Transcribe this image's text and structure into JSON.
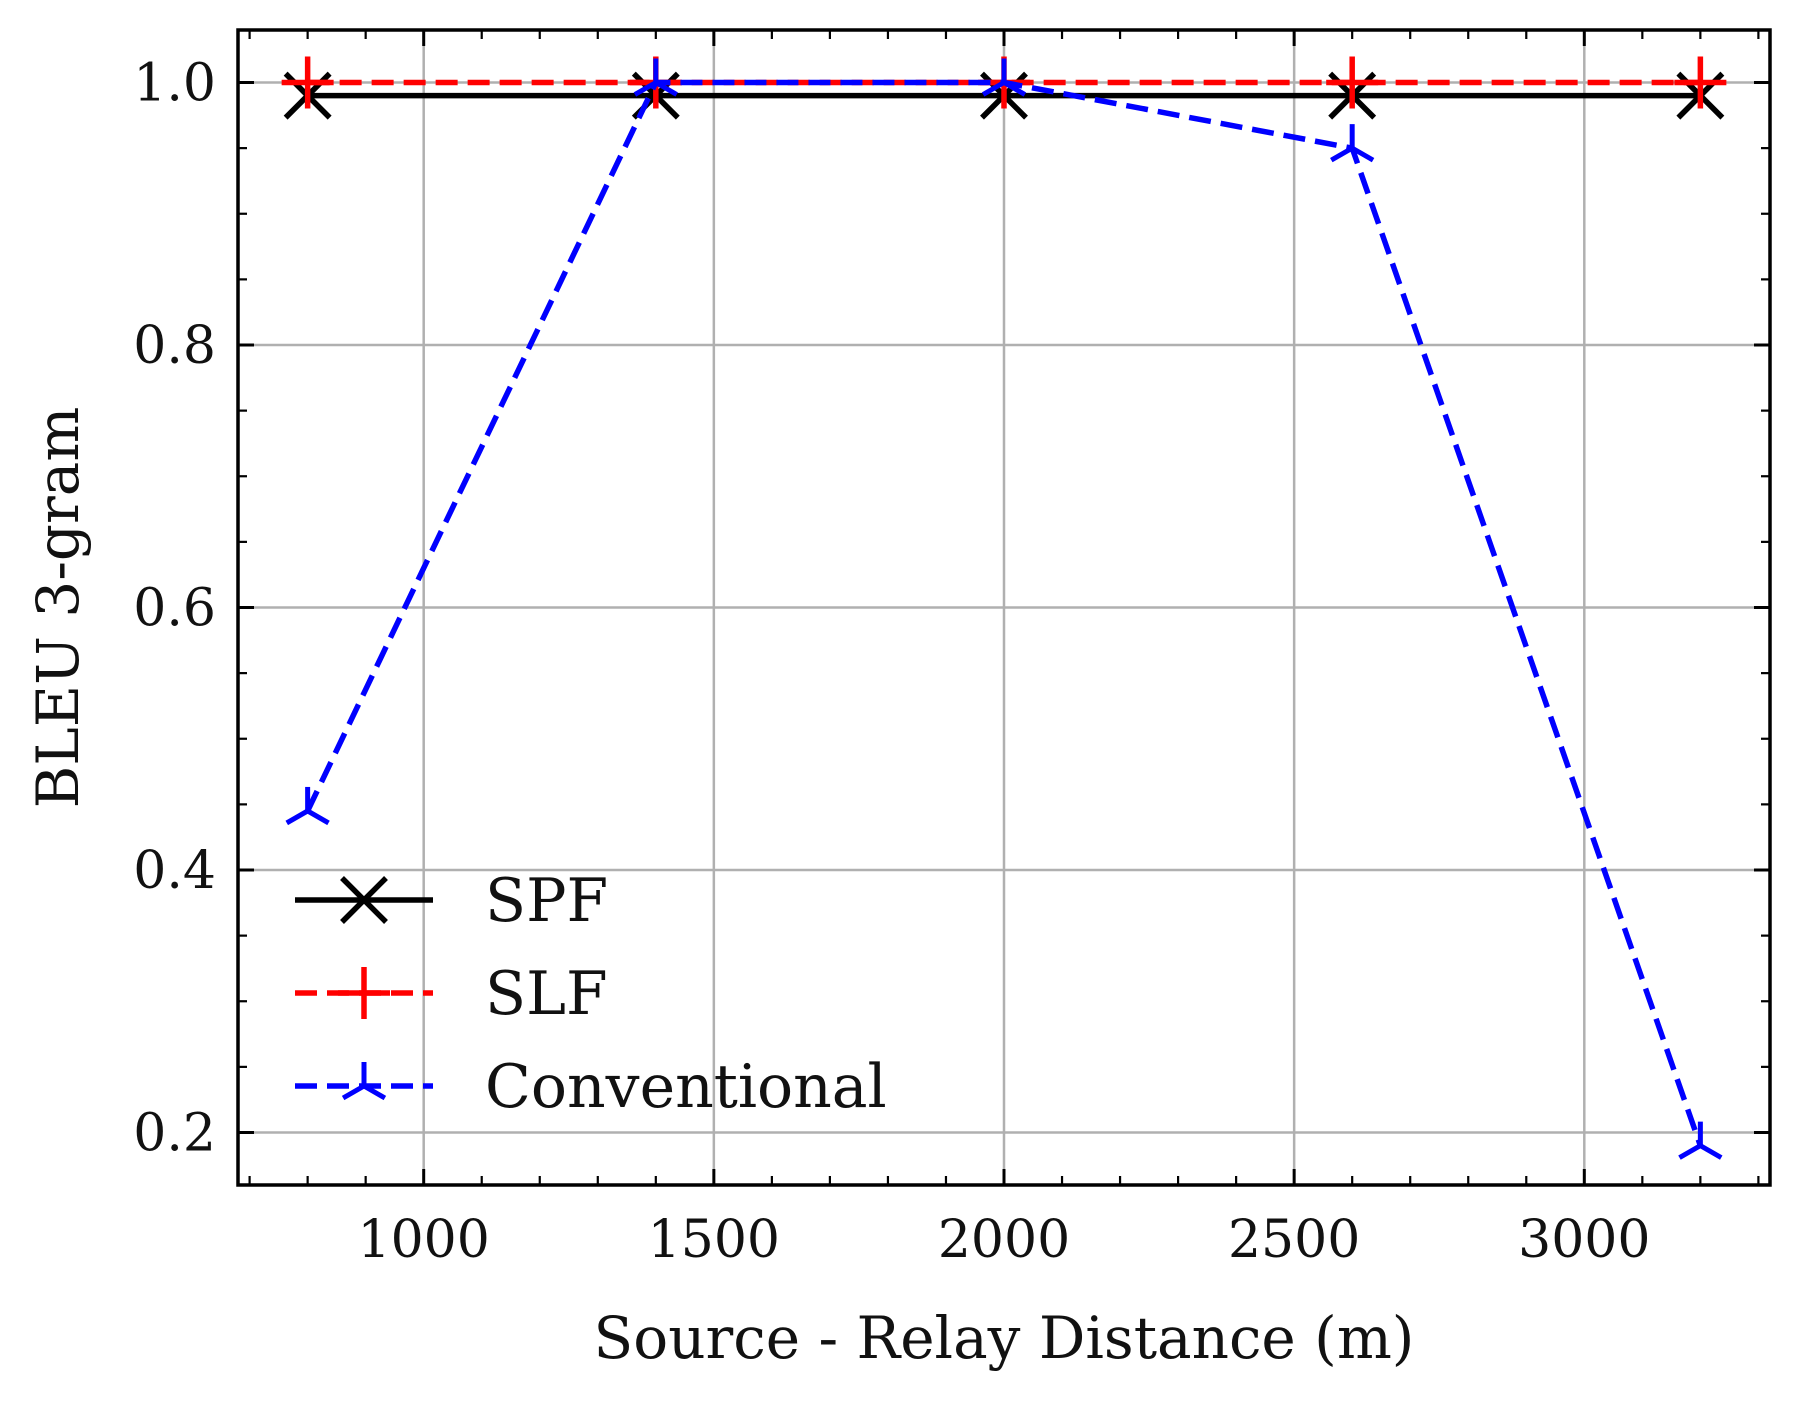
{
  "chart_data": {
    "type": "line",
    "title": "",
    "xlabel": "Source - Relay Distance (m)",
    "ylabel": "BLEU 3-gram",
    "x": [
      800,
      1400,
      2000,
      2600,
      3200
    ],
    "xlim": [
      680,
      3320
    ],
    "ylim": [
      0.16,
      1.04
    ],
    "xticks": [
      1000,
      1500,
      2000,
      2500,
      3000
    ],
    "xtick_labels": [
      "1000",
      "1500",
      "2000",
      "2500",
      "3000"
    ],
    "yticks": [
      0.2,
      0.4,
      0.6,
      0.8,
      1.0
    ],
    "ytick_labels": [
      "0.2",
      "0.4",
      "0.6",
      "0.8",
      "1.0"
    ],
    "grid": true,
    "legend_position": "lower-left",
    "series": [
      {
        "name": "SPF",
        "values": [
          0.99,
          0.99,
          0.99,
          0.99,
          0.99
        ],
        "color": "#000000",
        "linestyle": "solid",
        "marker": "x"
      },
      {
        "name": "SLF",
        "values": [
          1.0,
          1.0,
          1.0,
          1.0,
          1.0
        ],
        "color": "#ff0000",
        "linestyle": "dashed",
        "marker": "plus"
      },
      {
        "name": "Conventional",
        "values": [
          0.445,
          1.0,
          1.0,
          0.95,
          0.19
        ],
        "color": "#0000ff",
        "linestyle": "dashed",
        "marker": "tri-down"
      }
    ]
  }
}
